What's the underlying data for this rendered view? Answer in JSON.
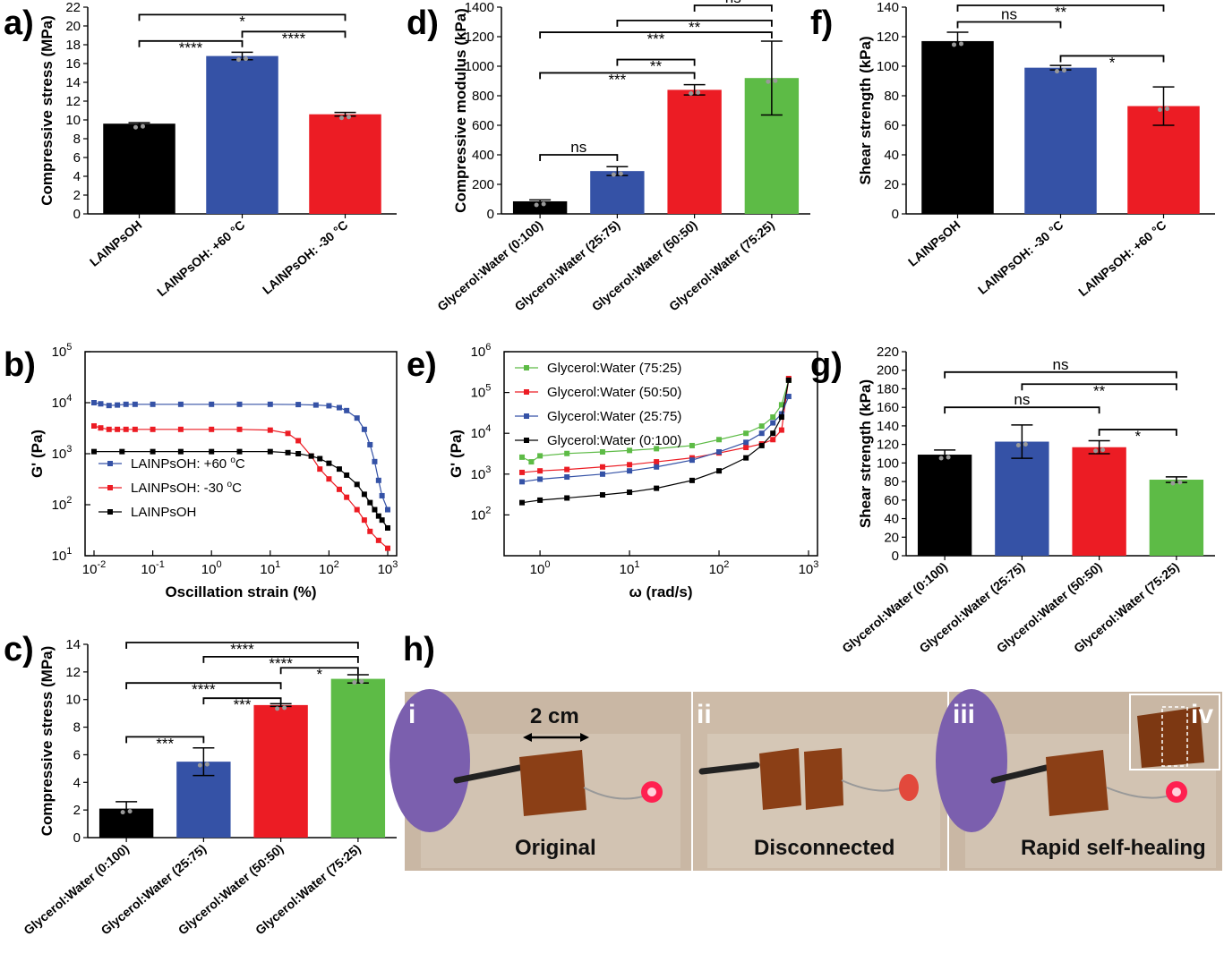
{
  "colors": {
    "black": "#000000",
    "blue": "#3552a6",
    "red": "#ec1c24",
    "green": "#5dbb46"
  },
  "chart_data": [
    {
      "panel": "a)",
      "type": "bar",
      "ylabel": "Compressive stress (MPa)",
      "ylim": [
        0,
        22
      ],
      "yticks": [
        0,
        2,
        4,
        6,
        8,
        10,
        12,
        14,
        16,
        18,
        20,
        22
      ],
      "categories": [
        "LAINPsOH",
        "LAINPsOH: +60 °C",
        "LAINPsOH: -30 °C"
      ],
      "values": [
        9.6,
        16.8,
        10.6
      ],
      "errors": [
        0.1,
        0.4,
        0.2
      ],
      "colors": [
        "#000000",
        "#3552a6",
        "#ec1c24"
      ],
      "significance": [
        {
          "from": 0,
          "to": 1,
          "label": "****",
          "y": 18.4
        },
        {
          "from": 1,
          "to": 2,
          "label": "****",
          "y": 19.4
        },
        {
          "from": 0,
          "to": 2,
          "label": "*",
          "y": 21.2
        }
      ]
    },
    {
      "panel": "d)",
      "type": "bar",
      "ylabel": "Compressive modulus (kPa)",
      "ylim": [
        0,
        1400
      ],
      "yticks": [
        0,
        200,
        400,
        600,
        800,
        1000,
        1200,
        1400
      ],
      "categories": [
        "Glycerol:Water (0:100)",
        "Glycerol:Water (25:75)",
        "Glycerol:Water (50:50)",
        "Glycerol:Water (75:25)"
      ],
      "values": [
        85,
        290,
        840,
        920
      ],
      "errors": [
        10,
        30,
        35,
        250
      ],
      "colors": [
        "#000000",
        "#3552a6",
        "#ec1c24",
        "#5dbb46"
      ],
      "significance": [
        {
          "from": 0,
          "to": 1,
          "label": "ns",
          "y": 400
        },
        {
          "from": 0,
          "to": 2,
          "label": "***",
          "y": 955
        },
        {
          "from": 1,
          "to": 2,
          "label": "**",
          "y": 1045
        },
        {
          "from": 0,
          "to": 3,
          "label": "***",
          "y": 1230
        },
        {
          "from": 1,
          "to": 3,
          "label": "**",
          "y": 1310
        },
        {
          "from": 2,
          "to": 3,
          "label": "ns",
          "y": 1440
        }
      ]
    },
    {
      "panel": "f)",
      "type": "bar",
      "ylabel": "Shear strength (kPa)",
      "ylim": [
        0,
        140
      ],
      "yticks": [
        0,
        20,
        40,
        60,
        80,
        100,
        120,
        140
      ],
      "categories": [
        "LAINPsOH",
        "LAINPsOH: -30 °C",
        "LAINPsOH: +60 °C"
      ],
      "values": [
        117,
        99,
        73
      ],
      "errors": [
        6,
        1.5,
        13
      ],
      "colors": [
        "#000000",
        "#3552a6",
        "#ec1c24"
      ],
      "significance": [
        {
          "from": 0,
          "to": 1,
          "label": "ns",
          "y": 130
        },
        {
          "from": 1,
          "to": 2,
          "label": "*",
          "y": 107
        },
        {
          "from": 0,
          "to": 2,
          "label": "**",
          "y": 145
        }
      ]
    },
    {
      "panel": "b)",
      "type": "line",
      "xlabel": "Oscillation strain (%)",
      "ylabel": "G' (Pa)",
      "xscale": "log",
      "yscale": "log",
      "xlim": [
        0.01,
        1000
      ],
      "ylim": [
        10,
        100000
      ],
      "xticks": [
        "10-2",
        "10-1",
        "100",
        "101",
        "102",
        "103"
      ],
      "yticks": [
        "101",
        "102",
        "103",
        "104",
        "105"
      ],
      "series": [
        {
          "name": "LAINPsOH: +60 °C",
          "color": "#3552a6",
          "x": [
            0.01,
            0.013,
            0.018,
            0.025,
            0.035,
            0.05,
            0.1,
            0.3,
            1,
            3,
            10,
            30,
            60,
            100,
            150,
            200,
            300,
            400,
            500,
            600,
            700,
            800,
            1000
          ],
          "y": [
            10000,
            9500,
            8800,
            9000,
            9300,
            9300,
            9300,
            9300,
            9300,
            9300,
            9300,
            9200,
            9000,
            8700,
            8000,
            7000,
            5000,
            3000,
            1500,
            700,
            300,
            150,
            80
          ]
        },
        {
          "name": "LAINPsOH: -30 °C",
          "color": "#ec1c24",
          "x": [
            0.01,
            0.013,
            0.018,
            0.025,
            0.035,
            0.05,
            0.1,
            0.3,
            1,
            3,
            10,
            20,
            30,
            50,
            70,
            100,
            150,
            200,
            300,
            400,
            500,
            700,
            1000
          ],
          "y": [
            3500,
            3200,
            3000,
            3000,
            3000,
            3000,
            3000,
            3000,
            3000,
            3000,
            2900,
            2500,
            1800,
            900,
            500,
            320,
            200,
            140,
            80,
            50,
            30,
            20,
            14
          ]
        },
        {
          "name": "LAINPsOH",
          "color": "#000000",
          "x": [
            0.01,
            0.03,
            0.1,
            0.3,
            1,
            3,
            10,
            20,
            30,
            50,
            70,
            100,
            150,
            200,
            300,
            400,
            500,
            600,
            700,
            800,
            1000
          ],
          "y": [
            1100,
            1100,
            1100,
            1100,
            1100,
            1100,
            1100,
            1050,
            1000,
            900,
            800,
            650,
            500,
            380,
            250,
            160,
            110,
            80,
            60,
            50,
            35
          ]
        }
      ]
    },
    {
      "panel": "e)",
      "type": "line",
      "xlabel": "ω (rad/s)",
      "ylabel": "G' (Pa)",
      "xscale": "log",
      "yscale": "log",
      "xlim": [
        0.5,
        1000
      ],
      "ylim": [
        10,
        1000000
      ],
      "xticks": [
        "100",
        "101",
        "102",
        "103"
      ],
      "yticks": [
        "102",
        "103",
        "104",
        "105",
        "106"
      ],
      "series": [
        {
          "name": "Glycerol:Water (75:25)",
          "color": "#5dbb46",
          "x": [
            0.63,
            0.8,
            1,
            2,
            5,
            10,
            20,
            50,
            100,
            200,
            300,
            400,
            500,
            600
          ],
          "y": [
            2600,
            2000,
            2800,
            3200,
            3500,
            3800,
            4200,
            5000,
            7000,
            10000,
            15000,
            25000,
            50000,
            200000
          ]
        },
        {
          "name": "Glycerol:Water (50:50)",
          "color": "#ec1c24",
          "x": [
            0.63,
            1,
            2,
            5,
            10,
            20,
            50,
            100,
            200,
            300,
            400,
            500,
            600
          ],
          "y": [
            1100,
            1200,
            1300,
            1500,
            1700,
            2000,
            2500,
            3300,
            4500,
            5500,
            7000,
            12000,
            220000
          ]
        },
        {
          "name": "Glycerol:Water (25:75)",
          "color": "#3552a6",
          "x": [
            0.63,
            1,
            2,
            5,
            10,
            20,
            50,
            100,
            200,
            300,
            400,
            500,
            600
          ],
          "y": [
            650,
            750,
            850,
            1000,
            1200,
            1500,
            2200,
            3500,
            6000,
            10000,
            18000,
            30000,
            80000
          ]
        },
        {
          "name": "Glycerol:Water (0:100)",
          "color": "#000000",
          "x": [
            0.63,
            1,
            2,
            5,
            10,
            20,
            50,
            100,
            200,
            300,
            400,
            500,
            600
          ],
          "y": [
            200,
            230,
            260,
            310,
            360,
            450,
            700,
            1200,
            2500,
            5000,
            10000,
            25000,
            200000
          ]
        }
      ]
    },
    {
      "panel": "c)",
      "type": "bar",
      "ylabel": "Compressive stress (MPa)",
      "ylim": [
        0,
        14
      ],
      "yticks": [
        0,
        2,
        4,
        6,
        8,
        10,
        12,
        14
      ],
      "categories": [
        "Glycerol:Water (0:100)",
        "Glycerol:Water (25:75)",
        "Glycerol:Water (50:50)",
        "Glycerol:Water (75:25)"
      ],
      "values": [
        2.1,
        5.5,
        9.6,
        11.5
      ],
      "errors": [
        0.5,
        1.0,
        0.1,
        0.3
      ],
      "colors": [
        "#000000",
        "#3552a6",
        "#ec1c24",
        "#5dbb46"
      ],
      "significance": [
        {
          "from": 0,
          "to": 1,
          "label": "***",
          "y": 7.3
        },
        {
          "from": 1,
          "to": 2,
          "label": "***",
          "y": 10.1
        },
        {
          "from": 0,
          "to": 2,
          "label": "****",
          "y": 11.2
        },
        {
          "from": 2,
          "to": 3,
          "label": "*",
          "y": 12.3
        },
        {
          "from": 1,
          "to": 3,
          "label": "****",
          "y": 13.1
        },
        {
          "from": 0,
          "to": 3,
          "label": "****",
          "y": 14.2
        }
      ]
    },
    {
      "panel": "g)",
      "type": "bar",
      "ylabel": "Shear strength (kPa)",
      "ylim": [
        0,
        220
      ],
      "yticks": [
        0,
        20,
        40,
        60,
        80,
        100,
        120,
        140,
        160,
        180,
        200,
        220
      ],
      "categories": [
        "Glycerol:Water (0:100)",
        "Glycerol:Water (25:75)",
        "Glycerol:Water (50:50)",
        "Glycerol:Water (75:25)"
      ],
      "values": [
        109,
        123,
        117,
        82
      ],
      "errors": [
        5,
        18,
        7,
        3
      ],
      "colors": [
        "#000000",
        "#3552a6",
        "#ec1c24",
        "#5dbb46"
      ],
      "significance": [
        {
          "from": 2,
          "to": 3,
          "label": "*",
          "y": 136
        },
        {
          "from": 0,
          "to": 2,
          "label": "ns",
          "y": 160
        },
        {
          "from": 1,
          "to": 3,
          "label": "**",
          "y": 185
        },
        {
          "from": 0,
          "to": 3,
          "label": "ns",
          "y": 198
        }
      ]
    }
  ],
  "photo": {
    "panel": "h)",
    "frames": [
      {
        "roman": "i",
        "caption": "Original",
        "scale": "2 cm"
      },
      {
        "roman": "ii",
        "caption": "Disconnected"
      },
      {
        "roman": "iii",
        "caption": "Rapid self-healing",
        "inset": "iv"
      }
    ]
  }
}
